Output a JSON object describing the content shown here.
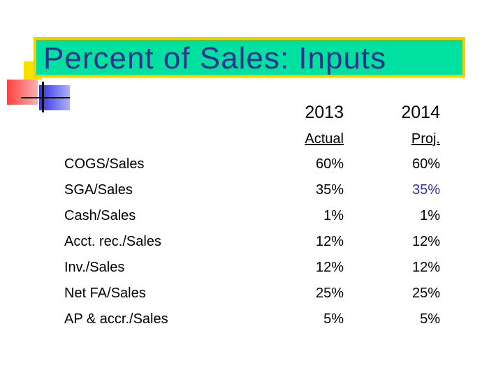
{
  "title": "Percent of Sales:  Inputs",
  "colors": {
    "title_bg": "#00e0a0",
    "title_border": "#f0d000",
    "title_text": "#303090",
    "highlight_value": "#3030a0"
  },
  "header": {
    "year1": "2013",
    "year2": "2014",
    "sub1": "Actual",
    "sub2": "Proj."
  },
  "rows": [
    {
      "label": "COGS/Sales",
      "v2013": "60%",
      "v2014": "60%"
    },
    {
      "label": "SGA/Sales",
      "v2013": "35%",
      "v2014": "35%"
    },
    {
      "label": "Cash/Sales",
      "v2013": "1%",
      "v2014": "1%"
    },
    {
      "label": "Acct. rec./Sales",
      "v2013": "12%",
      "v2014": "12%"
    },
    {
      "label": "Inv./Sales",
      "v2013": "12%",
      "v2014": "12%"
    },
    {
      "label": "Net FA/Sales",
      "v2013": "25%",
      "v2014": "25%"
    },
    {
      "label": "AP & accr./Sales",
      "v2013": "5%",
      "v2014": "5%"
    }
  ]
}
